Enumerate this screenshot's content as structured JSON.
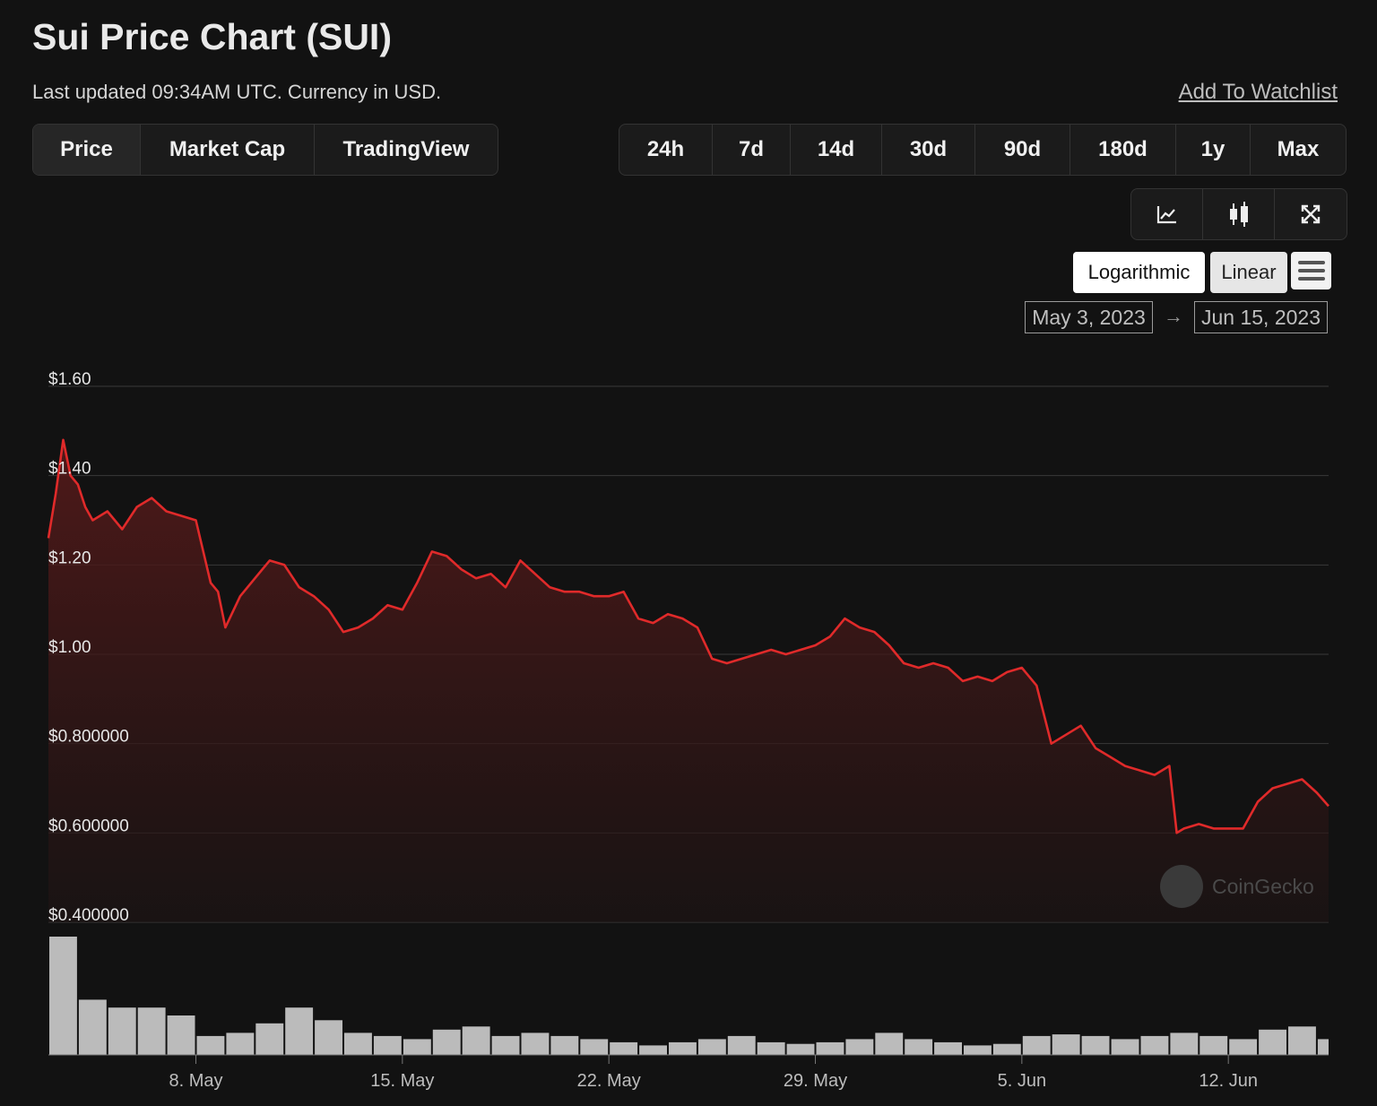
{
  "header": {
    "title": "Sui Price Chart (SUI)",
    "subtitle": "Last updated 09:34AM UTC. Currency in USD.",
    "watchlist_label": "Add To Watchlist"
  },
  "view_tabs": [
    {
      "label": "Price",
      "active": true
    },
    {
      "label": "Market Cap",
      "active": false
    },
    {
      "label": "TradingView",
      "active": false
    }
  ],
  "range_tabs": [
    "24h",
    "7d",
    "14d",
    "30d",
    "90d",
    "180d",
    "1y",
    "Max"
  ],
  "chart_type_buttons": [
    {
      "icon": "line-chart-icon"
    },
    {
      "icon": "candlestick-icon"
    },
    {
      "icon": "fullscreen-icon"
    }
  ],
  "scale": {
    "log_label": "Logarithmic",
    "linear_label": "Linear",
    "selected": "Linear"
  },
  "date_range": {
    "from": "May 3, 2023",
    "arrow": "→",
    "to": "Jun 15, 2023"
  },
  "watermark": "CoinGecko",
  "colors": {
    "background": "#121212",
    "price_line": "#e02a2a",
    "grid": "#3a3a3a",
    "volume": "#d9d9d9"
  },
  "chart_data": [
    {
      "type": "area",
      "ylim": [
        0.4,
        1.6
      ],
      "yticks": [
        1.6,
        1.4,
        1.2,
        1.0,
        0.8,
        0.6,
        0.4
      ],
      "ytick_labels": [
        "$1.60",
        "$1.40",
        "$1.20",
        "$1.00",
        "$0.800000",
        "$0.600000",
        "$0.400000"
      ],
      "xlim": [
        "2023-05-03T00:00",
        "2023-06-15T09:34"
      ],
      "xticks": [
        "2023-05-08",
        "2023-05-15",
        "2023-05-22",
        "2023-05-29",
        "2023-06-05",
        "2023-06-12"
      ],
      "xtick_labels": [
        "8. May",
        "15. May",
        "22. May",
        "29. May",
        "5. Jun",
        "12. Jun"
      ],
      "grid": true,
      "series": [
        {
          "x": [
            "2023-05-03T00:00",
            "2023-05-03T06:00",
            "2023-05-03T12:00",
            "2023-05-03T18:00",
            "2023-05-04T00:00",
            "2023-05-04T06:00",
            "2023-05-04T12:00",
            "2023-05-05T00:00",
            "2023-05-05T12:00",
            "2023-05-06T00:00",
            "2023-05-06T12:00",
            "2023-05-07T00:00",
            "2023-05-07T12:00",
            "2023-05-08T00:00",
            "2023-05-08T12:00",
            "2023-05-08T18:00",
            "2023-05-09T00:00",
            "2023-05-09T12:00",
            "2023-05-10T00:00",
            "2023-05-10T12:00",
            "2023-05-11T00:00",
            "2023-05-11T12:00",
            "2023-05-12T00:00",
            "2023-05-12T12:00",
            "2023-05-13T00:00",
            "2023-05-13T12:00",
            "2023-05-14T00:00",
            "2023-05-14T12:00",
            "2023-05-15T00:00",
            "2023-05-15T12:00",
            "2023-05-16T00:00",
            "2023-05-16T12:00",
            "2023-05-17T00:00",
            "2023-05-17T12:00",
            "2023-05-18T00:00",
            "2023-05-18T12:00",
            "2023-05-19T00:00",
            "2023-05-19T12:00",
            "2023-05-20T00:00",
            "2023-05-20T12:00",
            "2023-05-21T00:00",
            "2023-05-21T12:00",
            "2023-05-22T00:00",
            "2023-05-22T12:00",
            "2023-05-23T00:00",
            "2023-05-23T12:00",
            "2023-05-24T00:00",
            "2023-05-24T12:00",
            "2023-05-25T00:00",
            "2023-05-25T12:00",
            "2023-05-26T00:00",
            "2023-05-26T12:00",
            "2023-05-27T00:00",
            "2023-05-27T12:00",
            "2023-05-28T00:00",
            "2023-05-28T12:00",
            "2023-05-29T00:00",
            "2023-05-29T12:00",
            "2023-05-30T00:00",
            "2023-05-30T12:00",
            "2023-05-31T00:00",
            "2023-05-31T12:00",
            "2023-06-01T00:00",
            "2023-06-01T12:00",
            "2023-06-02T00:00",
            "2023-06-02T12:00",
            "2023-06-03T00:00",
            "2023-06-03T12:00",
            "2023-06-04T00:00",
            "2023-06-04T12:00",
            "2023-06-05T00:00",
            "2023-06-05T12:00",
            "2023-06-06T00:00",
            "2023-06-06T12:00",
            "2023-06-07T00:00",
            "2023-06-07T12:00",
            "2023-06-08T00:00",
            "2023-06-08T12:00",
            "2023-06-09T00:00",
            "2023-06-09T12:00",
            "2023-06-10T00:00",
            "2023-06-10T06:00",
            "2023-06-10T12:00",
            "2023-06-11T00:00",
            "2023-06-11T12:00",
            "2023-06-12T00:00",
            "2023-06-12T12:00",
            "2023-06-13T00:00",
            "2023-06-13T12:00",
            "2023-06-14T00:00",
            "2023-06-14T12:00",
            "2023-06-15T00:00",
            "2023-06-15T09:34"
          ],
          "values": [
            1.26,
            1.36,
            1.48,
            1.4,
            1.38,
            1.33,
            1.3,
            1.32,
            1.28,
            1.33,
            1.35,
            1.32,
            1.31,
            1.3,
            1.16,
            1.14,
            1.06,
            1.13,
            1.17,
            1.21,
            1.2,
            1.15,
            1.13,
            1.1,
            1.05,
            1.06,
            1.08,
            1.11,
            1.1,
            1.16,
            1.23,
            1.22,
            1.19,
            1.17,
            1.18,
            1.15,
            1.21,
            1.18,
            1.15,
            1.14,
            1.14,
            1.13,
            1.13,
            1.14,
            1.08,
            1.07,
            1.09,
            1.08,
            1.06,
            0.99,
            0.98,
            0.99,
            1.0,
            1.01,
            1.0,
            1.01,
            1.02,
            1.04,
            1.08,
            1.06,
            1.05,
            1.02,
            0.98,
            0.97,
            0.98,
            0.97,
            0.94,
            0.95,
            0.94,
            0.96,
            0.97,
            0.93,
            0.8,
            0.82,
            0.84,
            0.79,
            0.77,
            0.75,
            0.74,
            0.73,
            0.75,
            0.6,
            0.61,
            0.62,
            0.61,
            0.61,
            0.61,
            0.67,
            0.7,
            0.71,
            0.72,
            0.69,
            0.66
          ]
        }
      ]
    },
    {
      "type": "bar",
      "title": "",
      "xlim": [
        "2023-05-03T00:00",
        "2023-06-15T09:34"
      ],
      "x": [
        "2023-05-03",
        "2023-05-04",
        "2023-05-05",
        "2023-05-06",
        "2023-05-07",
        "2023-05-08",
        "2023-05-09",
        "2023-05-10",
        "2023-05-11",
        "2023-05-12",
        "2023-05-13",
        "2023-05-14",
        "2023-05-15",
        "2023-05-16",
        "2023-05-17",
        "2023-05-18",
        "2023-05-19",
        "2023-05-20",
        "2023-05-21",
        "2023-05-22",
        "2023-05-23",
        "2023-05-24",
        "2023-05-25",
        "2023-05-26",
        "2023-05-27",
        "2023-05-28",
        "2023-05-29",
        "2023-05-30",
        "2023-05-31",
        "2023-06-01",
        "2023-06-02",
        "2023-06-03",
        "2023-06-04",
        "2023-06-05",
        "2023-06-06",
        "2023-06-07",
        "2023-06-08",
        "2023-06-09",
        "2023-06-10",
        "2023-06-11",
        "2023-06-12",
        "2023-06-13",
        "2023-06-14",
        "2023-06-15"
      ],
      "values": [
        0.75,
        0.35,
        0.3,
        0.3,
        0.25,
        0.12,
        0.14,
        0.2,
        0.3,
        0.22,
        0.14,
        0.12,
        0.1,
        0.16,
        0.18,
        0.12,
        0.14,
        0.12,
        0.1,
        0.08,
        0.06,
        0.08,
        0.1,
        0.12,
        0.08,
        0.07,
        0.08,
        0.1,
        0.14,
        0.1,
        0.08,
        0.06,
        0.07,
        0.12,
        0.13,
        0.12,
        0.1,
        0.12,
        0.14,
        0.12,
        0.1,
        0.16,
        0.18,
        0.1
      ]
    }
  ]
}
